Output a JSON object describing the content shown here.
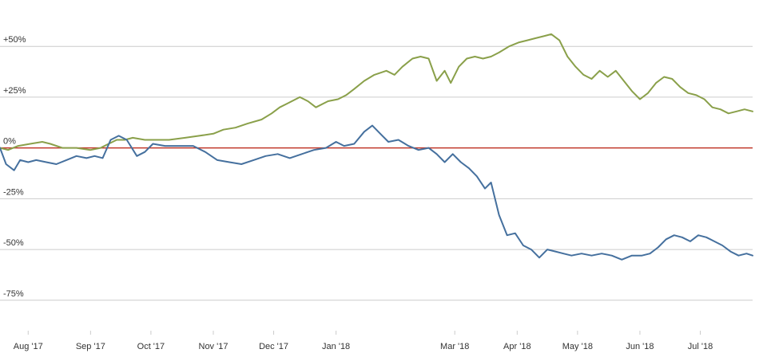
{
  "chart_data": {
    "type": "line",
    "title": "",
    "xlabel": "",
    "ylabel": "",
    "ylim": [
      -90,
      65
    ],
    "grid": "horizontal",
    "y_ticks": [
      {
        "value": 50,
        "label": "+50%"
      },
      {
        "value": 25,
        "label": "+25%"
      },
      {
        "value": 0,
        "label": "0%"
      },
      {
        "value": -25,
        "label": "-25%"
      },
      {
        "value": -50,
        "label": "-50%"
      },
      {
        "value": -75,
        "label": "-75%"
      }
    ],
    "x_range": [
      "2017-07-18",
      "2018-07-27"
    ],
    "x_ticks": [
      {
        "date": "2017-08-01",
        "label": "Aug '17"
      },
      {
        "date": "2017-09-01",
        "label": "Sep '17"
      },
      {
        "date": "2017-10-01",
        "label": "Oct '17"
      },
      {
        "date": "2017-11-01",
        "label": "Nov '17"
      },
      {
        "date": "2017-12-01",
        "label": "Dec '17"
      },
      {
        "date": "2018-01-01",
        "label": "Jan '18"
      },
      {
        "date": "2018-03-01",
        "label": "Mar '18"
      },
      {
        "date": "2018-04-01",
        "label": "Apr '18"
      },
      {
        "date": "2018-05-01",
        "label": "May '18"
      },
      {
        "date": "2018-06-01",
        "label": "Jun '18"
      },
      {
        "date": "2018-07-01",
        "label": "Jul '18"
      }
    ],
    "baseline": {
      "value": 0,
      "color": "#c0392b"
    },
    "series": [
      {
        "color": "#8aa04a",
        "points": [
          [
            "2017-07-18",
            0
          ],
          [
            "2017-07-22",
            -1
          ],
          [
            "2017-07-27",
            1
          ],
          [
            "2017-08-02",
            2
          ],
          [
            "2017-08-08",
            3
          ],
          [
            "2017-08-12",
            2
          ],
          [
            "2017-08-18",
            0
          ],
          [
            "2017-08-25",
            0
          ],
          [
            "2017-09-01",
            -1
          ],
          [
            "2017-09-06",
            0
          ],
          [
            "2017-09-10",
            2
          ],
          [
            "2017-09-14",
            4
          ],
          [
            "2017-09-18",
            4
          ],
          [
            "2017-09-22",
            5
          ],
          [
            "2017-09-28",
            4
          ],
          [
            "2017-10-04",
            4
          ],
          [
            "2017-10-10",
            4
          ],
          [
            "2017-10-18",
            5
          ],
          [
            "2017-10-25",
            6
          ],
          [
            "2017-11-01",
            7
          ],
          [
            "2017-11-06",
            9
          ],
          [
            "2017-11-12",
            10
          ],
          [
            "2017-11-18",
            12
          ],
          [
            "2017-11-25",
            14
          ],
          [
            "2017-11-30",
            17
          ],
          [
            "2017-12-04",
            20
          ],
          [
            "2017-12-08",
            22
          ],
          [
            "2017-12-14",
            25
          ],
          [
            "2017-12-18",
            23
          ],
          [
            "2017-12-22",
            20
          ],
          [
            "2017-12-28",
            23
          ],
          [
            "2018-01-02",
            24
          ],
          [
            "2018-01-06",
            26
          ],
          [
            "2018-01-10",
            29
          ],
          [
            "2018-01-15",
            33
          ],
          [
            "2018-01-20",
            36
          ],
          [
            "2018-01-26",
            38
          ],
          [
            "2018-01-30",
            36
          ],
          [
            "2018-02-03",
            40
          ],
          [
            "2018-02-08",
            44
          ],
          [
            "2018-02-12",
            45
          ],
          [
            "2018-02-16",
            44
          ],
          [
            "2018-02-20",
            33
          ],
          [
            "2018-02-24",
            38
          ],
          [
            "2018-02-27",
            32
          ],
          [
            "2018-03-03",
            40
          ],
          [
            "2018-03-07",
            44
          ],
          [
            "2018-03-11",
            45
          ],
          [
            "2018-03-15",
            44
          ],
          [
            "2018-03-19",
            45
          ],
          [
            "2018-03-23",
            47
          ],
          [
            "2018-03-28",
            50
          ],
          [
            "2018-04-02",
            52
          ],
          [
            "2018-04-06",
            53
          ],
          [
            "2018-04-10",
            54
          ],
          [
            "2018-04-14",
            55
          ],
          [
            "2018-04-18",
            56
          ],
          [
            "2018-04-22",
            53
          ],
          [
            "2018-04-26",
            45
          ],
          [
            "2018-04-30",
            40
          ],
          [
            "2018-05-04",
            36
          ],
          [
            "2018-05-08",
            34
          ],
          [
            "2018-05-12",
            38
          ],
          [
            "2018-05-16",
            35
          ],
          [
            "2018-05-20",
            38
          ],
          [
            "2018-05-24",
            33
          ],
          [
            "2018-05-28",
            28
          ],
          [
            "2018-06-01",
            24
          ],
          [
            "2018-06-05",
            27
          ],
          [
            "2018-06-09",
            32
          ],
          [
            "2018-06-13",
            35
          ],
          [
            "2018-06-17",
            34
          ],
          [
            "2018-06-21",
            30
          ],
          [
            "2018-06-25",
            27
          ],
          [
            "2018-06-29",
            26
          ],
          [
            "2018-07-03",
            24
          ],
          [
            "2018-07-07",
            20
          ],
          [
            "2018-07-11",
            19
          ],
          [
            "2018-07-15",
            17
          ],
          [
            "2018-07-19",
            18
          ],
          [
            "2018-07-23",
            19
          ],
          [
            "2018-07-27",
            18
          ]
        ]
      },
      {
        "color": "#45709e",
        "points": [
          [
            "2017-07-18",
            0
          ],
          [
            "2017-07-21",
            -8
          ],
          [
            "2017-07-25",
            -11
          ],
          [
            "2017-07-28",
            -6
          ],
          [
            "2017-08-01",
            -7
          ],
          [
            "2017-08-05",
            -6
          ],
          [
            "2017-08-10",
            -7
          ],
          [
            "2017-08-15",
            -8
          ],
          [
            "2017-08-20",
            -6
          ],
          [
            "2017-08-25",
            -4
          ],
          [
            "2017-08-30",
            -5
          ],
          [
            "2017-09-03",
            -4
          ],
          [
            "2017-09-07",
            -5
          ],
          [
            "2017-09-11",
            4
          ],
          [
            "2017-09-15",
            6
          ],
          [
            "2017-09-19",
            4
          ],
          [
            "2017-09-24",
            -4
          ],
          [
            "2017-09-28",
            -2
          ],
          [
            "2017-10-02",
            2
          ],
          [
            "2017-10-08",
            1
          ],
          [
            "2017-10-15",
            1
          ],
          [
            "2017-10-22",
            1
          ],
          [
            "2017-10-28",
            -2
          ],
          [
            "2017-11-03",
            -6
          ],
          [
            "2017-11-09",
            -7
          ],
          [
            "2017-11-15",
            -8
          ],
          [
            "2017-11-21",
            -6
          ],
          [
            "2017-11-27",
            -4
          ],
          [
            "2017-12-03",
            -3
          ],
          [
            "2017-12-09",
            -5
          ],
          [
            "2017-12-15",
            -3
          ],
          [
            "2017-12-21",
            -1
          ],
          [
            "2017-12-27",
            0
          ],
          [
            "2018-01-01",
            3
          ],
          [
            "2018-01-05",
            1
          ],
          [
            "2018-01-10",
            2
          ],
          [
            "2018-01-15",
            8
          ],
          [
            "2018-01-19",
            11
          ],
          [
            "2018-01-23",
            7
          ],
          [
            "2018-01-27",
            3
          ],
          [
            "2018-02-01",
            4
          ],
          [
            "2018-02-06",
            1
          ],
          [
            "2018-02-11",
            -1
          ],
          [
            "2018-02-16",
            0
          ],
          [
            "2018-02-20",
            -3
          ],
          [
            "2018-02-24",
            -7
          ],
          [
            "2018-02-28",
            -3
          ],
          [
            "2018-03-04",
            -7
          ],
          [
            "2018-03-08",
            -10
          ],
          [
            "2018-03-12",
            -14
          ],
          [
            "2018-03-16",
            -20
          ],
          [
            "2018-03-19",
            -17
          ],
          [
            "2018-03-23",
            -33
          ],
          [
            "2018-03-27",
            -43
          ],
          [
            "2018-03-31",
            -42
          ],
          [
            "2018-04-04",
            -48
          ],
          [
            "2018-04-08",
            -50
          ],
          [
            "2018-04-12",
            -54
          ],
          [
            "2018-04-16",
            -50
          ],
          [
            "2018-04-20",
            -51
          ],
          [
            "2018-04-24",
            -52
          ],
          [
            "2018-04-28",
            -53
          ],
          [
            "2018-05-03",
            -52
          ],
          [
            "2018-05-08",
            -53
          ],
          [
            "2018-05-13",
            -52
          ],
          [
            "2018-05-18",
            -53
          ],
          [
            "2018-05-23",
            -55
          ],
          [
            "2018-05-28",
            -53
          ],
          [
            "2018-06-02",
            -53
          ],
          [
            "2018-06-06",
            -52
          ],
          [
            "2018-06-10",
            -49
          ],
          [
            "2018-06-14",
            -45
          ],
          [
            "2018-06-18",
            -43
          ],
          [
            "2018-06-22",
            -44
          ],
          [
            "2018-06-26",
            -46
          ],
          [
            "2018-06-30",
            -43
          ],
          [
            "2018-07-04",
            -44
          ],
          [
            "2018-07-08",
            -46
          ],
          [
            "2018-07-12",
            -48
          ],
          [
            "2018-07-16",
            -51
          ],
          [
            "2018-07-20",
            -53
          ],
          [
            "2018-07-24",
            -52
          ],
          [
            "2018-07-27",
            -53
          ]
        ]
      }
    ]
  }
}
